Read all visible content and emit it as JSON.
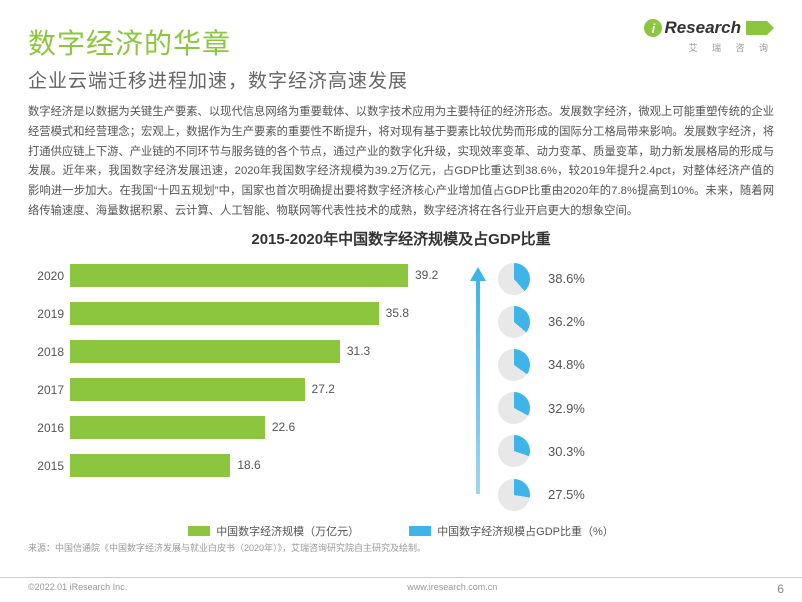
{
  "logo": {
    "brand_i": "i",
    "brand_text": "Research",
    "sub": "艾 瑞 咨 询",
    "accent_color": "#8cc63f"
  },
  "title": "数字经济的华章",
  "subtitle": "企业云端迁移进程加速，数字经济高速发展",
  "body": "数字经济是以数据为关键生产要素、以现代信息网络为重要载体、以数字技术应用为主要特征的经济形态。发展数字经济，微观上可能重塑传统的企业经营模式和经营理念；宏观上，数据作为生产要素的重要性不断提升，将对现有基于要素比较优势而形成的国际分工格局带来影响。发展数字经济，将打通供应链上下游、产业链的不同环节与服务链的各个节点，通过产业的数字化升级，实现效率变革、动力变革、质量变革，助力新发展格局的形成与发展。近年来，我国数字经济发展迅速，2020年我国数字经济规模为39.2万亿元，占GDP比重达到38.6%，较2019年提升2.4pct，对整体经济产值的影响进一步加大。在我国“十四五规划”中，国家也首次明确提出要将数字经济核心产业增加值占GDP比重由2020年的7.8%提高到10%。未来，随着网络传输速度、海量数据积累、云计算、人工智能、物联网等代表性技术的成熟，数字经济将在各行业开启更大的想象空间。",
  "chart": {
    "title": "2015-2020年中国数字经济规模及占GDP比重",
    "type": "bar+pie",
    "bar_color": "#8cc63f",
    "pie_fg_color": "#3fb4e8",
    "pie_bg_color": "#e8e8e8",
    "arrow_gradient": [
      "#9dd7f2",
      "#3fb4e8"
    ],
    "background_color": "#ffffff",
    "text_color": "#555555",
    "title_fontsize": 15,
    "label_fontsize": 12,
    "xmax": 45,
    "years": [
      "2020",
      "2019",
      "2018",
      "2017",
      "2016",
      "2015"
    ],
    "scale_values": [
      39.2,
      35.8,
      31.3,
      27.2,
      22.6,
      18.6
    ],
    "gdp_share": [
      38.6,
      36.2,
      34.8,
      32.9,
      30.3,
      27.5
    ],
    "legend": {
      "bar": "中国数字经济规模（万亿元）",
      "pie": "中国数字经济规模占GDP比重（%）"
    }
  },
  "source": "来源：中国信通院《中国数字经济发展与就业白皮书（2020年）》，艾瑞咨询研究院自主研究及绘制。",
  "footer": {
    "copyright": "©2022.01 iResearch Inc.",
    "url": "www.iresearch.com.cn",
    "page": "6"
  }
}
